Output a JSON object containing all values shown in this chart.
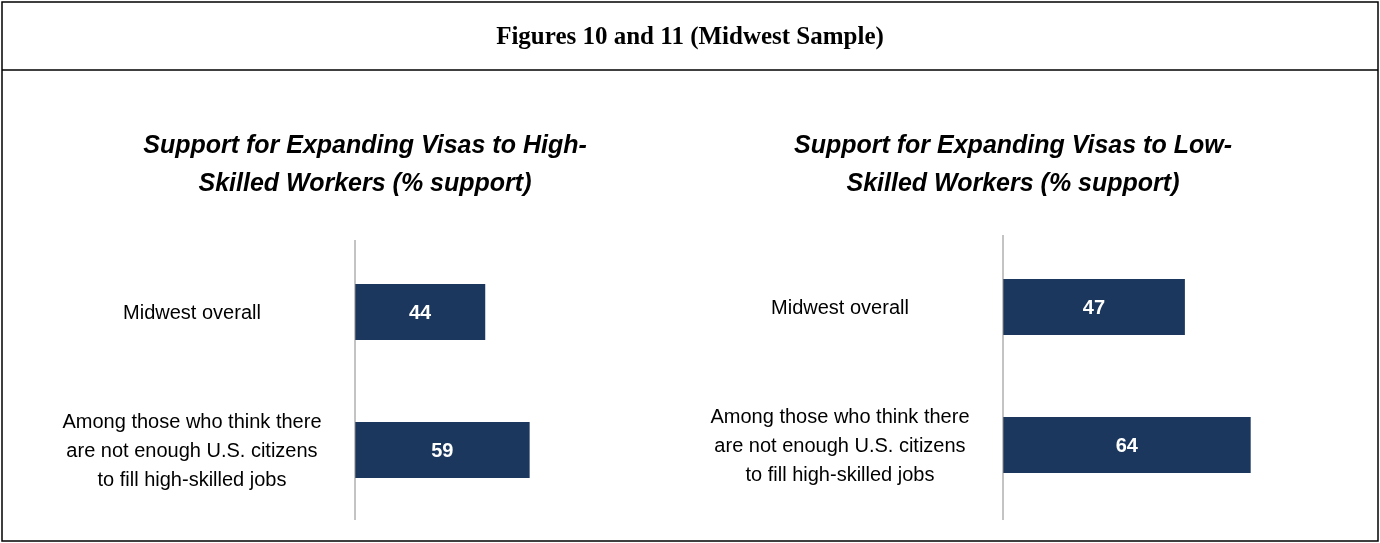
{
  "chart_data": [
    {
      "type": "other",
      "title": "Figures 10 and 11 (Midwest Sample)"
    },
    {
      "type": "bar",
      "orientation": "horizontal",
      "title": "Support for Expanding Visas to High-Skilled Workers (% support)",
      "categories": [
        "Midwest overall",
        "Among those who think there are not enough U.S. citizens to fill high-skilled jobs"
      ],
      "values": [
        44,
        59
      ],
      "color": "#1b375e",
      "data_labels": true
    },
    {
      "type": "bar",
      "orientation": "horizontal",
      "title": "Support for Expanding Visas to Low-Skilled Workers (% support)",
      "categories": [
        "Midwest overall",
        "Among those who think there are not enough U.S. citizens to fill high-skilled jobs"
      ],
      "values": [
        47,
        64
      ],
      "color": "#1b375e",
      "data_labels": true
    }
  ]
}
